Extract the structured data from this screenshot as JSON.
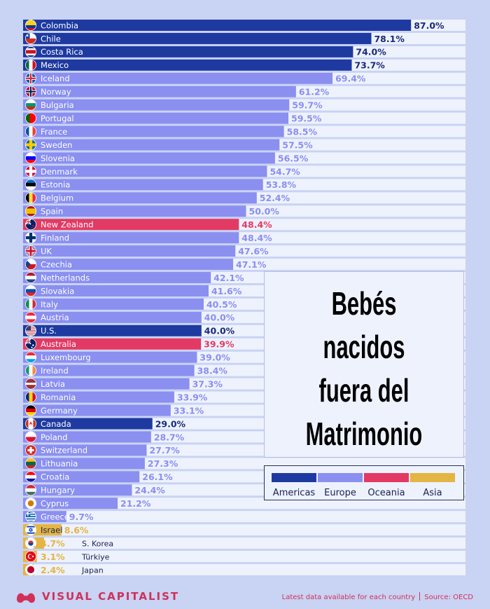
{
  "chart_data": {
    "type": "bar",
    "orientation": "horizontal",
    "title": "Bebés nacidos fuera del Matrimonio",
    "unit": "%",
    "xlim": [
      0,
      100
    ],
    "grid": false,
    "legend_placement": "right",
    "colors": {
      "Americas": "#1e3aa0",
      "Europe": "#8a8ff0",
      "Oceania": "#e23a64",
      "Asia": "#e3b543",
      "track": "#eef2fd",
      "label_dark": "#1a2a7a",
      "label_europe": "#8a8ff0",
      "label_oceania": "#e23a64",
      "label_asia": "#e3b543"
    },
    "bars": [
      {
        "country": "Colombia",
        "value": 87.0,
        "label": "87.0%",
        "region": "Americas",
        "flag": "colombia-flag-icon"
      },
      {
        "country": "Chile",
        "value": 78.1,
        "label": "78.1%",
        "region": "Americas",
        "flag": "chile-flag-icon"
      },
      {
        "country": "Costa Rica",
        "value": 74.0,
        "label": "74.0%",
        "region": "Americas",
        "flag": "costa-rica-flag-icon"
      },
      {
        "country": "Mexico",
        "value": 73.7,
        "label": "73.7%",
        "region": "Americas",
        "flag": "mexico-flag-icon"
      },
      {
        "country": "Iceland",
        "value": 69.4,
        "label": "69.4%",
        "region": "Europe",
        "flag": "iceland-flag-icon"
      },
      {
        "country": "Norway",
        "value": 61.2,
        "label": "61.2%",
        "region": "Europe",
        "flag": "norway-flag-icon"
      },
      {
        "country": "Bulgaria",
        "value": 59.7,
        "label": "59.7%",
        "region": "Europe",
        "flag": "bulgaria-flag-icon"
      },
      {
        "country": "Portugal",
        "value": 59.5,
        "label": "59.5%",
        "region": "Europe",
        "flag": "portugal-flag-icon"
      },
      {
        "country": "France",
        "value": 58.5,
        "label": "58.5%",
        "region": "Europe",
        "flag": "france-flag-icon"
      },
      {
        "country": "Sweden",
        "value": 57.5,
        "label": "57.5%",
        "region": "Europe",
        "flag": "sweden-flag-icon"
      },
      {
        "country": "Slovenia",
        "value": 56.5,
        "label": "56.5%",
        "region": "Europe",
        "flag": "slovenia-flag-icon"
      },
      {
        "country": "Denmark",
        "value": 54.7,
        "label": "54.7%",
        "region": "Europe",
        "flag": "denmark-flag-icon"
      },
      {
        "country": "Estonia",
        "value": 53.8,
        "label": "53.8%",
        "region": "Europe",
        "flag": "estonia-flag-icon"
      },
      {
        "country": "Belgium",
        "value": 52.4,
        "label": "52.4%",
        "region": "Europe",
        "flag": "belgium-flag-icon"
      },
      {
        "country": "Spain",
        "value": 50.0,
        "label": "50.0%",
        "region": "Europe",
        "flag": "spain-flag-icon"
      },
      {
        "country": "New Zealand",
        "value": 48.4,
        "label": "48.4%",
        "region": "Oceania",
        "flag": "new-zealand-flag-icon"
      },
      {
        "country": "Finland",
        "value": 48.4,
        "label": "48.4%",
        "region": "Europe",
        "flag": "finland-flag-icon"
      },
      {
        "country": "UK",
        "value": 47.6,
        "label": "47.6%",
        "region": "Europe",
        "flag": "uk-flag-icon"
      },
      {
        "country": "Czechia",
        "value": 47.1,
        "label": "47.1%",
        "region": "Europe",
        "flag": "czechia-flag-icon"
      },
      {
        "country": "Netherlands",
        "value": 42.1,
        "label": "42.1%",
        "region": "Europe",
        "flag": "netherlands-flag-icon"
      },
      {
        "country": "Slovakia",
        "value": 41.6,
        "label": "41.6%",
        "region": "Europe",
        "flag": "slovakia-flag-icon"
      },
      {
        "country": "Italy",
        "value": 40.5,
        "label": "40.5%",
        "region": "Europe",
        "flag": "italy-flag-icon"
      },
      {
        "country": "Austria",
        "value": 40.0,
        "label": "40.0%",
        "region": "Europe",
        "flag": "austria-flag-icon"
      },
      {
        "country": "U.S.",
        "value": 40.0,
        "label": "40.0%",
        "region": "Americas",
        "flag": "us-flag-icon"
      },
      {
        "country": "Australia",
        "value": 39.9,
        "label": "39.9%",
        "region": "Oceania",
        "flag": "australia-flag-icon"
      },
      {
        "country": "Luxembourg",
        "value": 39.0,
        "label": "39.0%",
        "region": "Europe",
        "flag": "luxembourg-flag-icon"
      },
      {
        "country": "Ireland",
        "value": 38.4,
        "label": "38.4%",
        "region": "Europe",
        "flag": "ireland-flag-icon"
      },
      {
        "country": "Latvia",
        "value": 37.3,
        "label": "37.3%",
        "region": "Europe",
        "flag": "latvia-flag-icon"
      },
      {
        "country": "Romania",
        "value": 33.9,
        "label": "33.9%",
        "region": "Europe",
        "flag": "romania-flag-icon"
      },
      {
        "country": "Germany",
        "value": 33.1,
        "label": "33.1%",
        "region": "Europe",
        "flag": "germany-flag-icon"
      },
      {
        "country": "Canada",
        "value": 29.0,
        "label": "29.0%",
        "region": "Americas",
        "flag": "canada-flag-icon"
      },
      {
        "country": "Poland",
        "value": 28.7,
        "label": "28.7%",
        "region": "Europe",
        "flag": "poland-flag-icon"
      },
      {
        "country": "Switzerland",
        "value": 27.7,
        "label": "27.7%",
        "region": "Europe",
        "flag": "switzerland-flag-icon"
      },
      {
        "country": "Lithuania",
        "value": 27.3,
        "label": "27.3%",
        "region": "Europe",
        "flag": "lithuania-flag-icon"
      },
      {
        "country": "Croatia",
        "value": 26.1,
        "label": "26.1%",
        "region": "Europe",
        "flag": "croatia-flag-icon"
      },
      {
        "country": "Hungary",
        "value": 24.4,
        "label": "24.4%",
        "region": "Europe",
        "flag": "hungary-flag-icon"
      },
      {
        "country": "Cyprus",
        "value": 21.2,
        "label": "21.2%",
        "region": "Europe",
        "flag": "cyprus-flag-icon"
      },
      {
        "country": "Greece",
        "value": 9.7,
        "label": "9.7%",
        "region": "Europe",
        "flag": "greece-flag-icon"
      },
      {
        "country": "Israel",
        "value": 8.6,
        "label": "8.6%",
        "region": "Asia",
        "flag": "israel-flag-icon"
      },
      {
        "country": "S. Korea",
        "value": 4.7,
        "label": "4.7%",
        "region": "Asia",
        "flag": "south-korea-flag-icon"
      },
      {
        "country": "Türkiye",
        "value": 3.1,
        "label": "3.1%",
        "region": "Asia",
        "flag": "turkiye-flag-icon"
      },
      {
        "country": "Japan",
        "value": 2.4,
        "label": "2.4%",
        "region": "Asia",
        "flag": "japan-flag-icon"
      }
    ]
  },
  "title_lines": [
    "Bebés nacidos",
    "fuera del",
    "Matrimonio"
  ],
  "legend": [
    {
      "label": "Americas",
      "color": "#1e3aa0"
    },
    {
      "label": "Europe",
      "color": "#8a8ff0"
    },
    {
      "label": "Oceania",
      "color": "#e23a64"
    },
    {
      "label": "Asia",
      "color": "#e3b543"
    }
  ],
  "footer": {
    "brand": "VISUAL CAPITALIST",
    "logo_icon": "visual-capitalist-logo-icon",
    "note": "Latest data available for each country",
    "source": "Source: OECD"
  }
}
